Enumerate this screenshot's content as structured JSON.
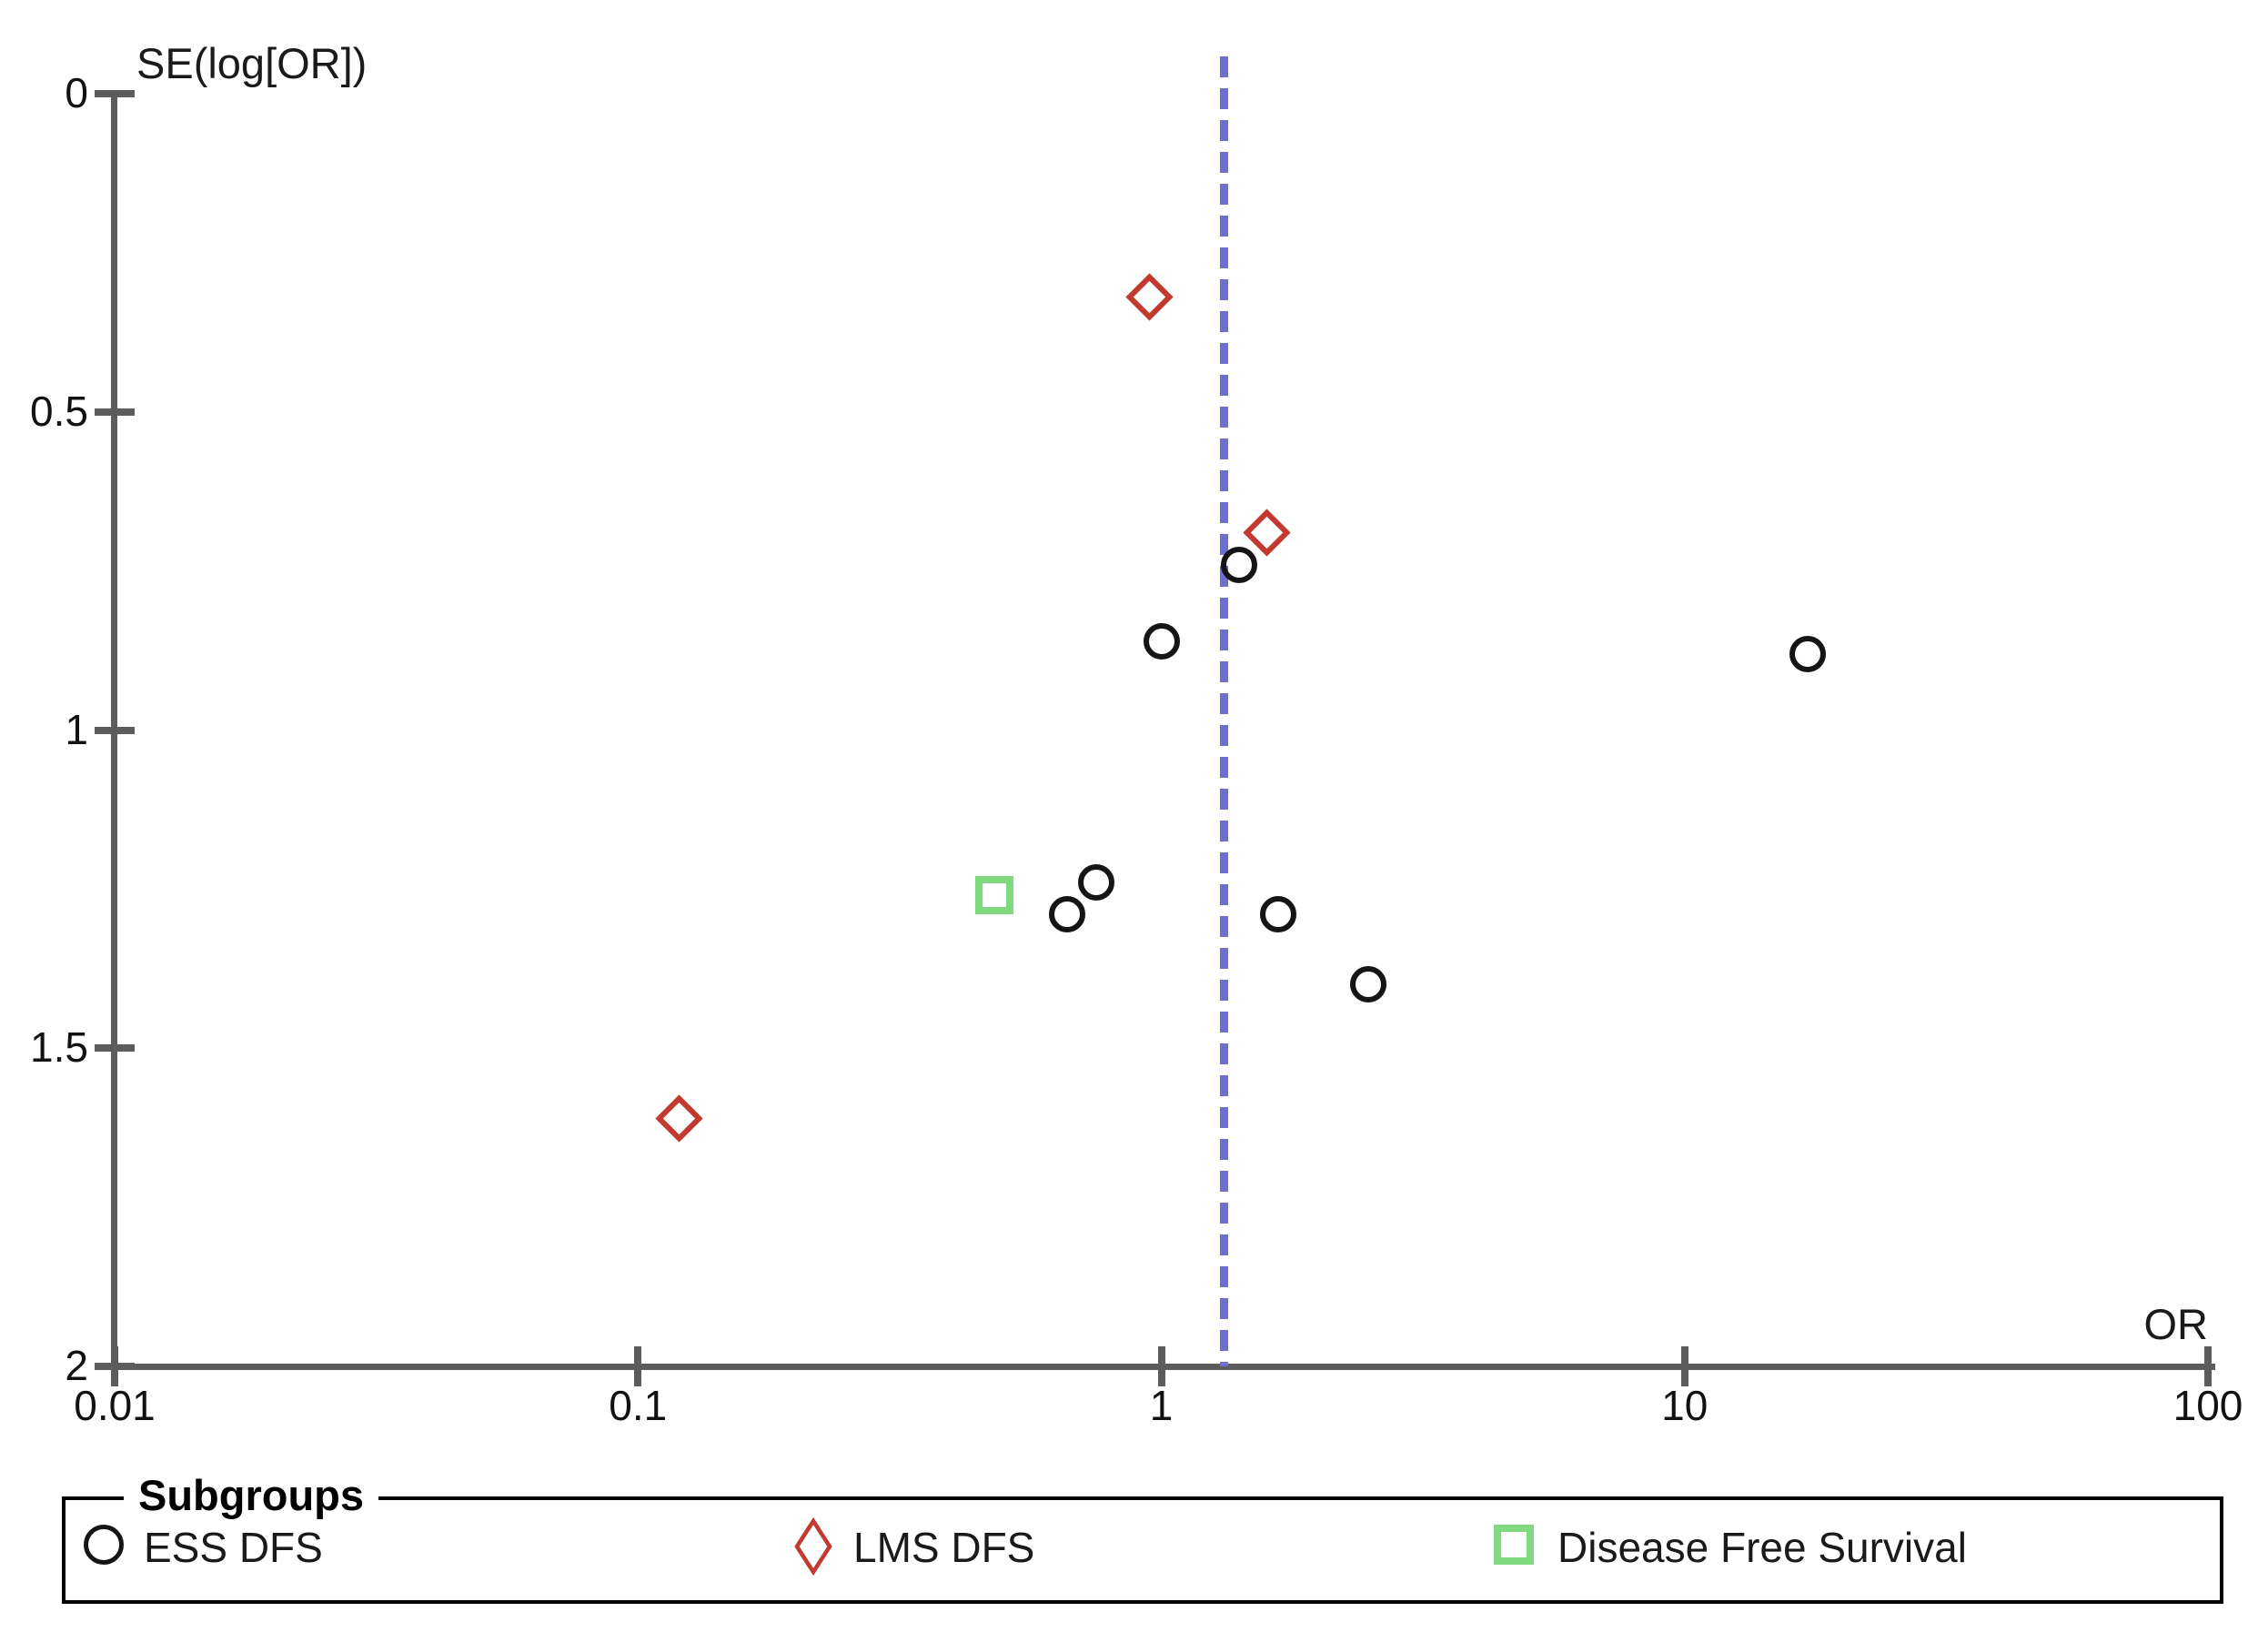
{
  "chart_data": {
    "type": "scatter",
    "plot_style": "funnel-plot",
    "title": "",
    "x_axis": {
      "label": "OR",
      "scale": "log10",
      "range": [
        0.01,
        100
      ],
      "ticks": [
        "0.01",
        "0.1",
        "1",
        "10",
        "100"
      ]
    },
    "y_axis": {
      "label": "SE(log[OR])",
      "scale": "linear",
      "inverted": true,
      "range": [
        0,
        2
      ],
      "ticks": [
        "0",
        "0.5",
        "1",
        "1.5",
        "2"
      ]
    },
    "ref_line": {
      "or": 1.32,
      "style": "dashed",
      "color": "#6e6ed2"
    },
    "grid": false,
    "legend_position": "bottom",
    "series": [
      {
        "name": "ESS DFS",
        "marker": "circle",
        "color": "#151515",
        "points": [
          {
            "or": 1.41,
            "se": 0.74
          },
          {
            "or": 1.0,
            "se": 0.86
          },
          {
            "or": 17.2,
            "se": 0.88
          },
          {
            "or": 0.75,
            "se": 1.24
          },
          {
            "or": 0.66,
            "se": 1.29
          },
          {
            "or": 1.67,
            "se": 1.29
          },
          {
            "or": 2.49,
            "se": 1.4
          }
        ]
      },
      {
        "name": "LMS DFS",
        "marker": "diamond",
        "color": "#c23a2f",
        "points": [
          {
            "or": 0.95,
            "se": 0.32
          },
          {
            "or": 1.59,
            "se": 0.69
          },
          {
            "or": 0.12,
            "se": 1.61
          }
        ]
      },
      {
        "name": "Disease Free Survival",
        "marker": "square",
        "color": "#7fd97f",
        "points": [
          {
            "or": 0.48,
            "se": 1.26
          }
        ]
      }
    ]
  },
  "legend": {
    "title": "Subgroups",
    "items": [
      {
        "label": "ESS DFS",
        "marker": "circle"
      },
      {
        "label": "LMS DFS",
        "marker": "diamond"
      },
      {
        "label": "Disease Free Survival",
        "marker": "square"
      }
    ]
  },
  "colors": {
    "axis": "#5c5c5c",
    "text": "#1a1a1a",
    "ref_line": "#6e6ed2",
    "ess_dfs": "#151515",
    "lms_dfs": "#c23a2f",
    "disease_free_survival": "#7fd97f",
    "background": "#ffffff"
  }
}
